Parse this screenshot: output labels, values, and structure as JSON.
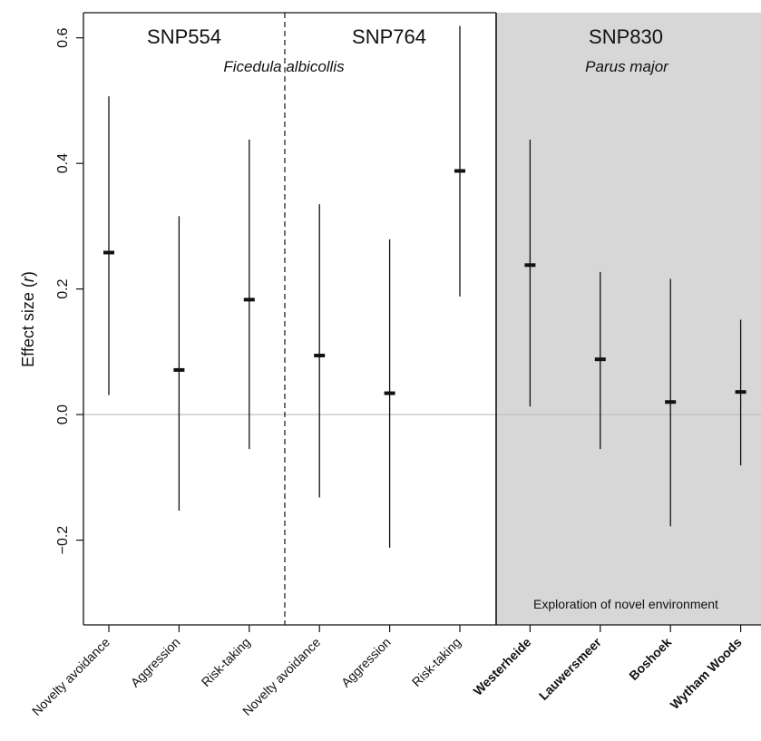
{
  "chart_data": {
    "type": "errorbar",
    "ylabel": "Effect size",
    "ylabel_var": "r",
    "ylabel_open": "(",
    "ylabel_close": ")",
    "ylim": [
      -0.335,
      0.64
    ],
    "yticks": [
      -0.2,
      0.0,
      0.2,
      0.4,
      0.6
    ],
    "ytick_labels": [
      "−0.2",
      "0.0",
      "0.2",
      "0.4",
      "0.6"
    ],
    "reference_line": 0.0,
    "panels": [
      {
        "label": "SNP554",
        "species": "Ficedula albicollis",
        "shaded": false
      },
      {
        "label": "SNP764",
        "species": "Ficedula albicollis",
        "shaded": false
      },
      {
        "label": "SNP830",
        "species": "Parus major",
        "shaded": true,
        "note": "Exploration of novel environment"
      }
    ],
    "species_labels": {
      "flycatcher": "Ficedula albicollis",
      "tit": "Parus major"
    },
    "points": [
      {
        "category": "Novelty avoidance",
        "panel": "SNP554",
        "estimate": 0.258,
        "lower": 0.031,
        "upper": 0.507,
        "bold": false
      },
      {
        "category": "Aggression",
        "panel": "SNP554",
        "estimate": 0.071,
        "lower": -0.153,
        "upper": 0.316,
        "bold": false
      },
      {
        "category": "Risk-taking",
        "panel": "SNP554",
        "estimate": 0.183,
        "lower": -0.055,
        "upper": 0.438,
        "bold": false
      },
      {
        "category": "Novelty avoidance",
        "panel": "SNP764",
        "estimate": 0.094,
        "lower": -0.132,
        "upper": 0.335,
        "bold": false
      },
      {
        "category": "Aggression",
        "panel": "SNP764",
        "estimate": 0.034,
        "lower": -0.212,
        "upper": 0.279,
        "bold": false
      },
      {
        "category": "Risk-taking",
        "panel": "SNP764",
        "estimate": 0.388,
        "lower": 0.188,
        "upper": 0.619,
        "bold": false
      },
      {
        "category": "Westerheide",
        "panel": "SNP830",
        "estimate": 0.238,
        "lower": 0.013,
        "upper": 0.438,
        "bold": true
      },
      {
        "category": "Lauwersmeer",
        "panel": "SNP830",
        "estimate": 0.088,
        "lower": -0.055,
        "upper": 0.227,
        "bold": true
      },
      {
        "category": "Boshoek",
        "panel": "SNP830",
        "estimate": 0.02,
        "lower": -0.178,
        "upper": 0.216,
        "bold": true
      },
      {
        "category": "Wytham Woods",
        "panel": "SNP830",
        "estimate": 0.036,
        "lower": -0.081,
        "upper": 0.151,
        "bold": true
      }
    ],
    "colors": {
      "shade": "#d7d7d7",
      "zero_line": "#bdbdbd",
      "ink": "#111111"
    }
  }
}
